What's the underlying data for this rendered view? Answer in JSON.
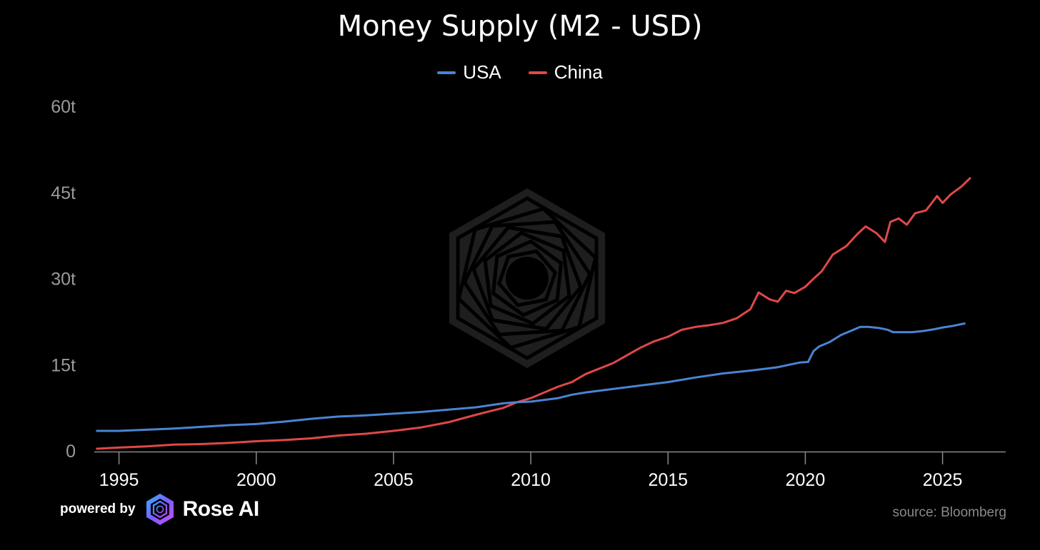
{
  "footer": {
    "powered_by": "powered by",
    "brand": "Rose AI",
    "source": "source: Bloomberg"
  },
  "colors": {
    "background": "#000000",
    "usa": "#4a84d4",
    "china": "#e04848",
    "axis_text": "#9a9a9a",
    "watermark": "#1e1e1e"
  },
  "chart_data": {
    "type": "line",
    "title": "Money Supply (M2 - USD)",
    "xlabel": "",
    "ylabel": "",
    "xlim": [
      1994.1,
      2027.3
    ],
    "ylim": [
      0,
      60
    ],
    "xticks": [
      1995,
      2000,
      2005,
      2010,
      2015,
      2020,
      2025
    ],
    "xtick_labels": [
      "1995",
      "2000",
      "2005",
      "2010",
      "2015",
      "2020",
      "2025"
    ],
    "yticks": [
      0,
      15,
      30,
      45,
      60
    ],
    "ytick_labels": [
      "0",
      "15t",
      "30t",
      "45t",
      "60t"
    ],
    "grid": false,
    "legend": "top-center",
    "series": [
      {
        "name": "USA",
        "color": "#4a84d4",
        "x": [
          1994.2,
          1995,
          1996,
          1997,
          1998,
          1999,
          2000,
          2001,
          2002,
          2003,
          2004,
          2005,
          2006,
          2007,
          2008,
          2009,
          2009.5,
          2010,
          2011,
          2011.5,
          2012,
          2013,
          2014,
          2015,
          2016,
          2017,
          2018,
          2019,
          2019.8,
          2020.1,
          2020.3,
          2020.5,
          2020.9,
          2021.3,
          2021.7,
          2022.0,
          2022.3,
          2022.7,
          2023.0,
          2023.2,
          2023.5,
          2023.9,
          2024.3,
          2024.7,
          2025.0,
          2025.4,
          2025.8
        ],
        "values": [
          3.6,
          3.6,
          3.8,
          4.0,
          4.3,
          4.6,
          4.8,
          5.2,
          5.7,
          6.1,
          6.3,
          6.6,
          6.9,
          7.3,
          7.7,
          8.4,
          8.6,
          8.7,
          9.3,
          9.9,
          10.3,
          10.9,
          11.5,
          12.1,
          12.9,
          13.6,
          14.1,
          14.7,
          15.5,
          15.6,
          17.5,
          18.3,
          19.1,
          20.3,
          21.1,
          21.7,
          21.7,
          21.5,
          21.2,
          20.8,
          20.8,
          20.8,
          21.0,
          21.3,
          21.6,
          21.9,
          22.3
        ]
      },
      {
        "name": "China",
        "color": "#e04848",
        "x": [
          1994.2,
          1995,
          1996,
          1997,
          1998,
          1999,
          2000,
          2001,
          2002,
          2003,
          2004,
          2005,
          2006,
          2007,
          2008,
          2008.5,
          2009,
          2009.5,
          2010,
          2011,
          2011.5,
          2012,
          2013,
          2014,
          2014.5,
          2015,
          2015.5,
          2016,
          2016.5,
          2017,
          2017.5,
          2018,
          2018.3,
          2018.7,
          2019,
          2019.3,
          2019.6,
          2020,
          2020.3,
          2020.6,
          2021,
          2021.5,
          2021.9,
          2022.2,
          2022.6,
          2022.9,
          2023.1,
          2023.4,
          2023.7,
          2024,
          2024.4,
          2024.8,
          2025.0,
          2025.3,
          2025.7,
          2026.0
        ],
        "values": [
          0.5,
          0.7,
          0.9,
          1.2,
          1.3,
          1.5,
          1.8,
          2.0,
          2.3,
          2.8,
          3.1,
          3.6,
          4.2,
          5.1,
          6.4,
          7.0,
          7.6,
          8.6,
          9.3,
          11.3,
          12.1,
          13.5,
          15.4,
          18.1,
          19.2,
          20.0,
          21.2,
          21.7,
          22.0,
          22.4,
          23.2,
          24.8,
          27.7,
          26.5,
          26.1,
          28.0,
          27.6,
          28.7,
          30.1,
          31.4,
          34.3,
          35.8,
          37.9,
          39.2,
          38.0,
          36.5,
          40.0,
          40.6,
          39.5,
          41.5,
          42.0,
          44.5,
          43.3,
          44.8,
          46.2,
          47.6
        ]
      }
    ]
  }
}
